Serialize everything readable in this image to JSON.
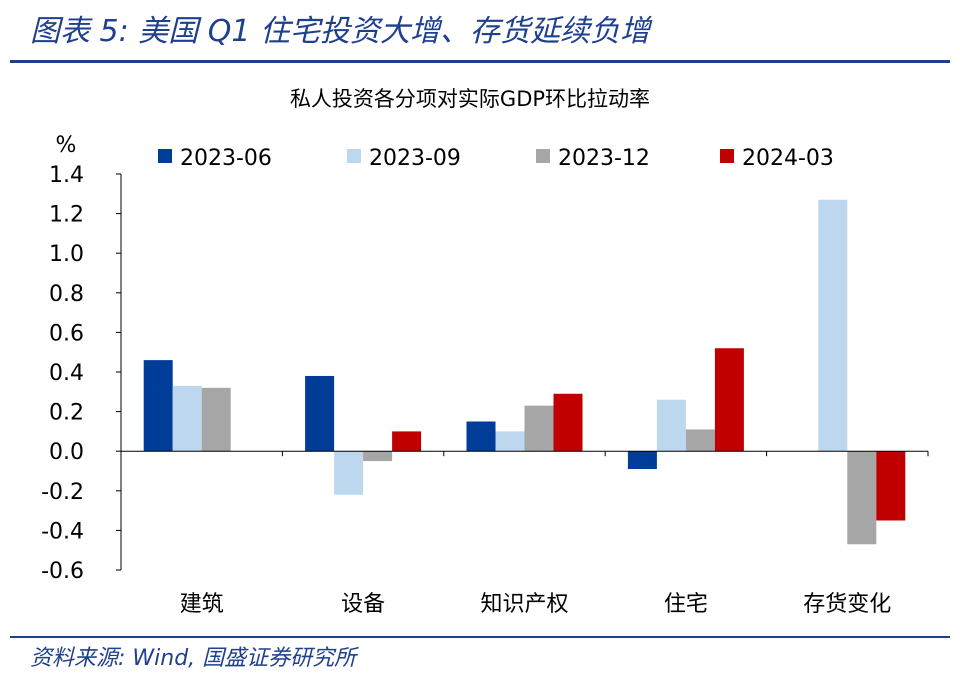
{
  "header": {
    "title": "图表 5: 美国 Q1 住宅投资大增、存货延续负增"
  },
  "footer": {
    "source": "资料来源: Wind, 国盛证券研究所"
  },
  "colors": {
    "brand_blue": "#1f3f8f",
    "series": [
      "#003d99",
      "#bdd7ee",
      "#a6a6a6",
      "#c00000"
    ]
  },
  "chart_data": {
    "type": "bar",
    "title": "私人投资各分项对实际GDP环比拉动率",
    "ylabel": "%",
    "xlabel": "",
    "ylim": [
      -0.6,
      1.4
    ],
    "yticks": [
      "1.4",
      "1.2",
      "1.0",
      "0.8",
      "0.6",
      "0.4",
      "0.2",
      "0.0",
      "-0.2",
      "-0.4",
      "-0.6"
    ],
    "legend_position": "top",
    "grid": false,
    "categories": [
      "建筑",
      "设备",
      "知识产权",
      "住宅",
      "存货变化"
    ],
    "series": [
      {
        "name": "2023-06",
        "values": [
          0.46,
          0.38,
          0.15,
          -0.09,
          null
        ]
      },
      {
        "name": "2023-09",
        "values": [
          0.33,
          -0.22,
          0.1,
          0.26,
          1.27
        ]
      },
      {
        "name": "2023-12",
        "values": [
          0.32,
          -0.05,
          0.23,
          0.11,
          -0.47
        ]
      },
      {
        "name": "2024-03",
        "values": [
          null,
          0.1,
          0.29,
          0.52,
          -0.35
        ]
      }
    ]
  }
}
